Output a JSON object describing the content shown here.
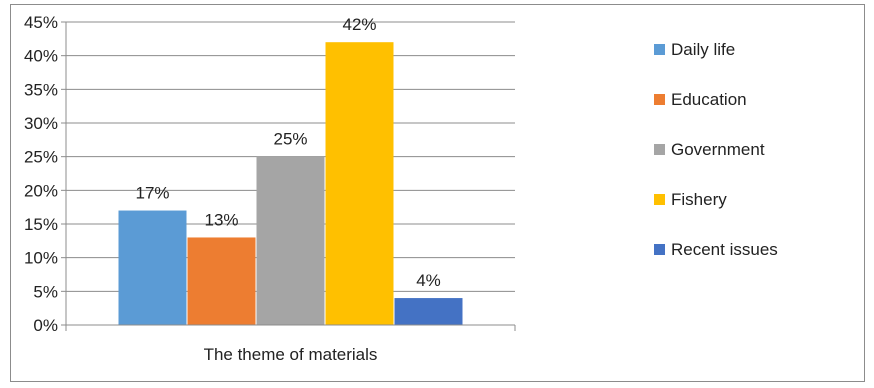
{
  "chart_data": {
    "type": "bar",
    "title": "",
    "xlabel": "The theme of materials",
    "ylabel": "",
    "ylim": [
      0,
      45
    ],
    "y_tick_step": 5,
    "y_tick_format": "percent",
    "grid": true,
    "legend_position": "right",
    "categories": [
      "The theme of materials"
    ],
    "series": [
      {
        "name": "Daily life",
        "values": [
          17
        ],
        "label": "17%",
        "color": "#5B9BD5"
      },
      {
        "name": "Education",
        "values": [
          13
        ],
        "label": "13%",
        "color": "#ED7D31"
      },
      {
        "name": "Government",
        "values": [
          25
        ],
        "label": "25%",
        "color": "#A5A5A5"
      },
      {
        "name": "Fishery",
        "values": [
          42
        ],
        "label": "42%",
        "color": "#FFC000"
      },
      {
        "name": "Recent issues",
        "values": [
          4
        ],
        "label": "4%",
        "color": "#4472C4"
      }
    ],
    "y_ticks": [
      "0%",
      "5%",
      "10%",
      "15%",
      "20%",
      "25%",
      "30%",
      "35%",
      "40%",
      "45%"
    ]
  }
}
